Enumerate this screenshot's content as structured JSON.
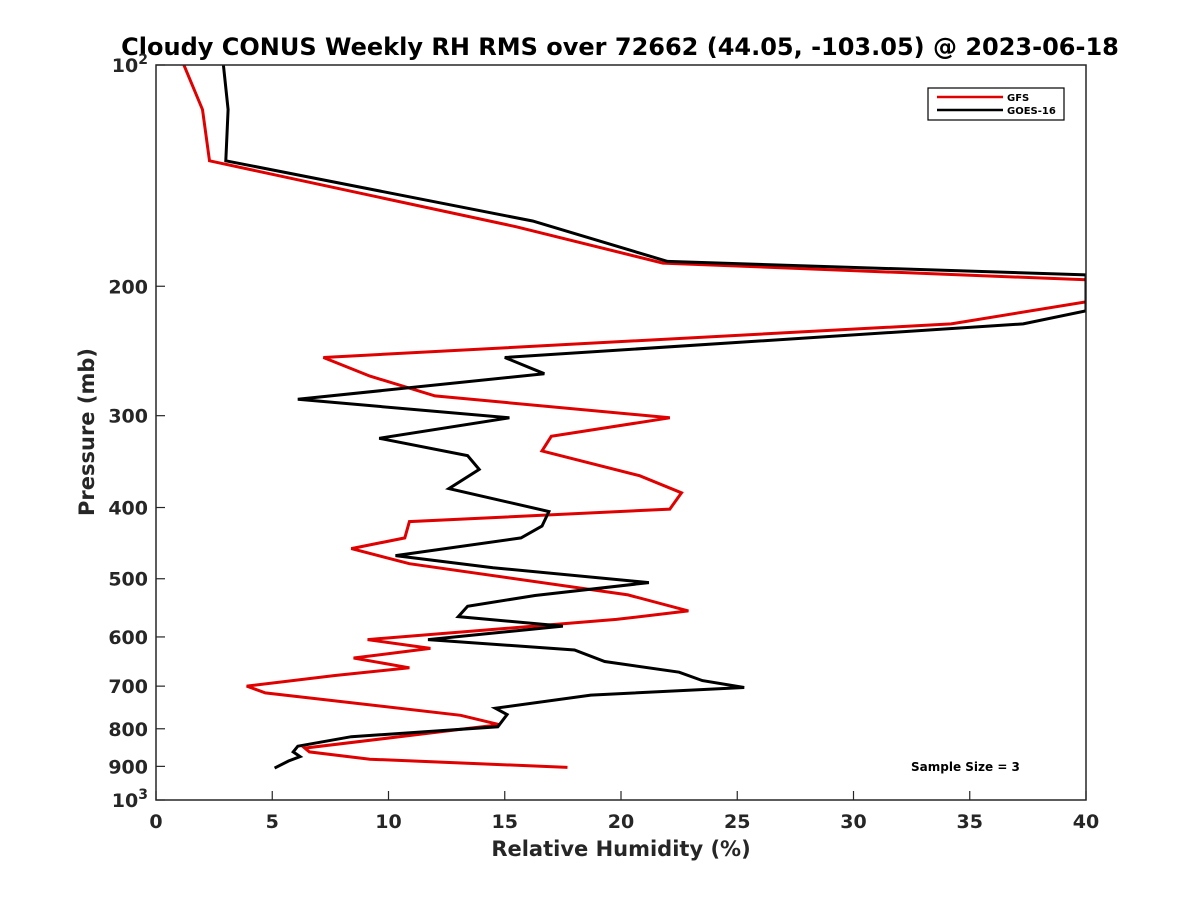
{
  "chart_data": {
    "type": "line",
    "title": "Cloudy CONUS Weekly RH RMS over 72662 (44.05, -103.05) @ 2023-06-18",
    "xlabel": "Relative Humidity (%)",
    "ylabel": "Pressure (mb)",
    "xlim": [
      0,
      40
    ],
    "ylim": [
      100,
      1000
    ],
    "y_scale": "log",
    "y_reversed": true,
    "x_ticks": [
      0,
      5,
      10,
      15,
      20,
      25,
      30,
      35,
      40
    ],
    "x_tick_labels": [
      "0",
      "5",
      "10",
      "15",
      "20",
      "25",
      "30",
      "35",
      "40"
    ],
    "y_ticks": [
      100,
      200,
      300,
      400,
      500,
      600,
      700,
      800,
      900,
      1000
    ],
    "y_tick_labels": [
      {
        "base": "10",
        "exp": "2"
      },
      {
        "base": "200",
        "exp": ""
      },
      {
        "base": "300",
        "exp": ""
      },
      {
        "base": "400",
        "exp": ""
      },
      {
        "base": "500",
        "exp": ""
      },
      {
        "base": "600",
        "exp": ""
      },
      {
        "base": "700",
        "exp": ""
      },
      {
        "base": "800",
        "exp": ""
      },
      {
        "base": "900",
        "exp": ""
      },
      {
        "base": "10",
        "exp": "3"
      }
    ],
    "grid": false,
    "legend_position": "top-right",
    "annotation": "Sample Size = 3",
    "series": [
      {
        "name": "GFS",
        "color": "#e00000",
        "points": [
          [
            1.2,
            100
          ],
          [
            2.0,
            115
          ],
          [
            2.3,
            135
          ],
          [
            15.5,
            166
          ],
          [
            21.8,
            186
          ],
          [
            40.0,
            196
          ],
          [
            40.0,
            210
          ],
          [
            34.2,
            225
          ],
          [
            7.2,
            250
          ],
          [
            9.2,
            265
          ],
          [
            12.0,
            282
          ],
          [
            22.1,
            302
          ],
          [
            17.0,
            320
          ],
          [
            16.6,
            335
          ],
          [
            20.8,
            362
          ],
          [
            22.6,
            382
          ],
          [
            22.1,
            402
          ],
          [
            10.9,
            418
          ],
          [
            10.7,
            440
          ],
          [
            8.4,
            455
          ],
          [
            10.9,
            477
          ],
          [
            20.3,
            526
          ],
          [
            22.9,
            553
          ],
          [
            19.8,
            568
          ],
          [
            9.1,
            605
          ],
          [
            11.8,
            622
          ],
          [
            8.5,
            641
          ],
          [
            10.9,
            661
          ],
          [
            7.7,
            677
          ],
          [
            3.9,
            700
          ],
          [
            4.7,
            715
          ],
          [
            13.1,
            767
          ],
          [
            14.8,
            790
          ],
          [
            13.3,
            800
          ],
          [
            6.4,
            850
          ],
          [
            6.6,
            860
          ],
          [
            9.2,
            880
          ],
          [
            17.7,
            903
          ]
        ]
      },
      {
        "name": "GOES-16",
        "color": "#000000",
        "points": [
          [
            2.9,
            100
          ],
          [
            3.1,
            115
          ],
          [
            3.0,
            135
          ],
          [
            16.2,
            163
          ],
          [
            22.0,
            185
          ],
          [
            40.0,
            193
          ],
          [
            40.0,
            216
          ],
          [
            37.3,
            225
          ],
          [
            15.0,
            250
          ],
          [
            16.7,
            263
          ],
          [
            6.1,
            285
          ],
          [
            15.2,
            302
          ],
          [
            9.6,
            322
          ],
          [
            13.4,
            340
          ],
          [
            13.9,
            355
          ],
          [
            12.6,
            377
          ],
          [
            16.9,
            405
          ],
          [
            16.6,
            424
          ],
          [
            15.7,
            440
          ],
          [
            10.3,
            465
          ],
          [
            14.5,
            483
          ],
          [
            21.2,
            506
          ],
          [
            16.3,
            527
          ],
          [
            13.4,
            545
          ],
          [
            13.0,
            563
          ],
          [
            17.5,
            580
          ],
          [
            11.7,
            605
          ],
          [
            18.0,
            625
          ],
          [
            19.3,
            648
          ],
          [
            22.5,
            670
          ],
          [
            23.5,
            688
          ],
          [
            25.3,
            703
          ],
          [
            18.7,
            720
          ],
          [
            14.6,
            750
          ],
          [
            15.1,
            765
          ],
          [
            14.7,
            795
          ],
          [
            8.4,
            820
          ],
          [
            6.1,
            845
          ],
          [
            5.9,
            860
          ],
          [
            6.2,
            873
          ],
          [
            5.7,
            885
          ],
          [
            5.1,
            905
          ]
        ]
      }
    ]
  }
}
